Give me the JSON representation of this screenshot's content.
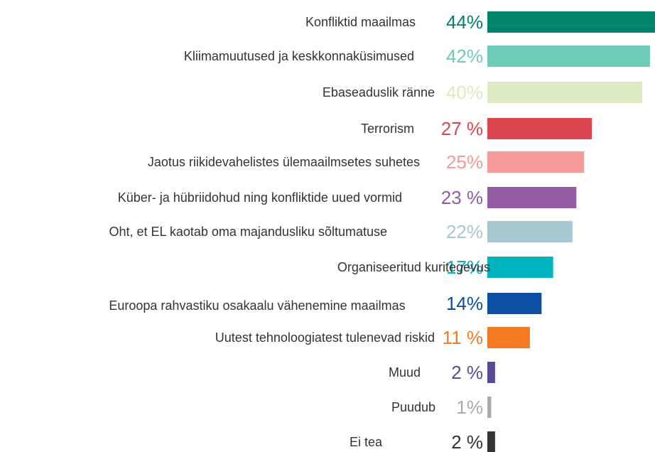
{
  "chart_data": {
    "type": "bar",
    "orientation": "horizontal",
    "categories": [
      "Konfliktid maailmas",
      "Kliimamuutused ja keskkonnaküsimused",
      "Ebaseaduslik ränne",
      "Terrorism",
      "Jaotus riikidevahelistes ülemaailmsetes suhetes",
      "Küber- ja hübriidohud ning konfliktide uued vormid",
      "Oht, et EL kaotab oma majandusliku sõltumatuse",
      "Organiseeritud kuritegevus",
      "Euroopa rahvastiku osakaalu vähenemine maailmas",
      "Uutest tehnoloogiatest tulenevad riskid",
      "Muud",
      "Puudub",
      "Ei tea"
    ],
    "values": [
      44,
      42,
      40,
      27,
      25,
      23,
      22,
      17,
      14,
      11,
      2,
      1,
      2
    ],
    "value_labels": [
      "44%",
      "42%",
      "40%",
      "27 %",
      "25%",
      "23 %",
      "22%",
      "17%",
      "14%",
      "11 %",
      "2 %",
      "1%",
      "2 %"
    ],
    "colors": [
      "#00826b",
      "#6ecbb7",
      "#dcebc0",
      "#dc4650",
      "#f49a98",
      "#935ca3",
      "#a6c8d0",
      "#00b4c0",
      "#0b4ea2",
      "#f37b23",
      "#5b4a9a",
      "#aaaaaa",
      "#333333"
    ]
  }
}
